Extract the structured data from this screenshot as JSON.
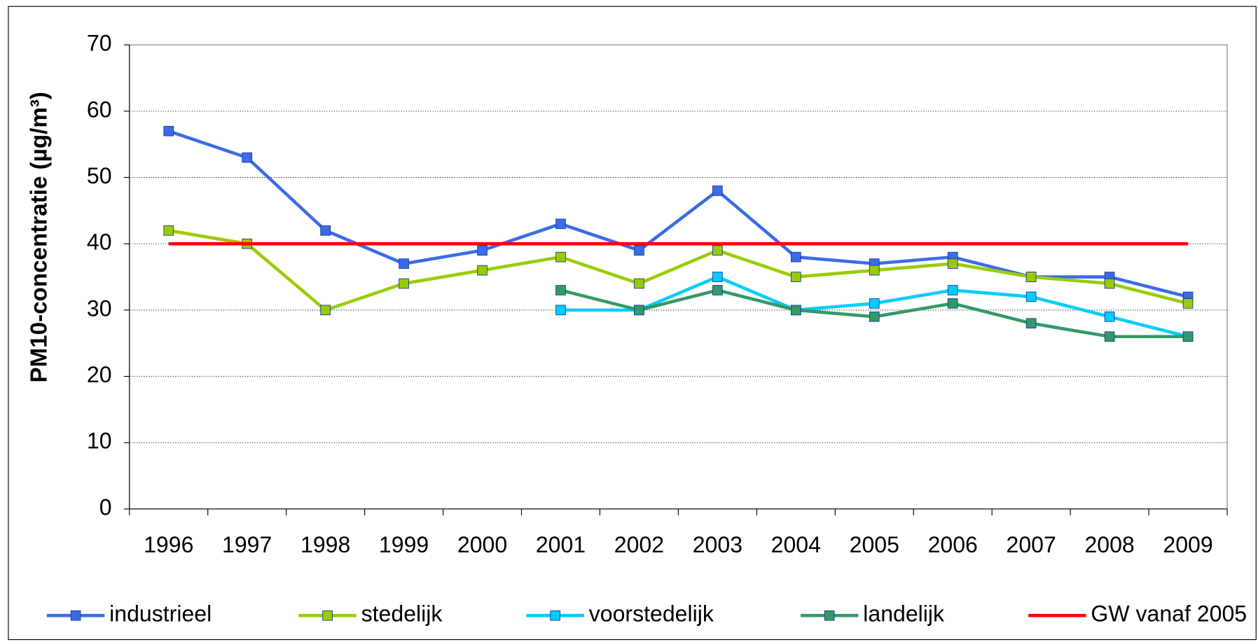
{
  "chart_data": {
    "type": "line",
    "y_label": "PM10-concentratie (µg/m³)",
    "categories": [
      "1996",
      "1997",
      "1998",
      "1999",
      "2000",
      "2001",
      "2002",
      "2003",
      "2004",
      "2005",
      "2006",
      "2007",
      "2008",
      "2009"
    ],
    "series": [
      {
        "name": "industrieel",
        "color": "#3a6be8",
        "marker": "square",
        "values": [
          57,
          53,
          42,
          37,
          39,
          43,
          39,
          48,
          38,
          37,
          38,
          35,
          35,
          32
        ]
      },
      {
        "name": "stedelijk",
        "color": "#99cc00",
        "marker": "square",
        "values": [
          42,
          40,
          30,
          34,
          36,
          38,
          34,
          39,
          35,
          36,
          37,
          35,
          34,
          31
        ]
      },
      {
        "name": "voorstedelijk",
        "color": "#00ccff",
        "marker": "square",
        "values": [
          null,
          null,
          null,
          null,
          null,
          30,
          30,
          35,
          30,
          31,
          33,
          32,
          29,
          26
        ]
      },
      {
        "name": "landelijk",
        "color": "#339966",
        "marker": "square",
        "values": [
          null,
          null,
          null,
          null,
          null,
          33,
          30,
          33,
          30,
          29,
          31,
          28,
          26,
          26
        ]
      },
      {
        "name": "GW vanaf 2005",
        "color": "#ff0000",
        "marker": "none",
        "values": [
          40,
          40,
          40,
          40,
          40,
          40,
          40,
          40,
          40,
          40,
          40,
          40,
          40,
          40
        ]
      }
    ],
    "ylim": [
      0,
      70
    ],
    "yticks": [
      0,
      10,
      20,
      30,
      40,
      50,
      60,
      70
    ],
    "grid": true,
    "legend": "bottom"
  }
}
